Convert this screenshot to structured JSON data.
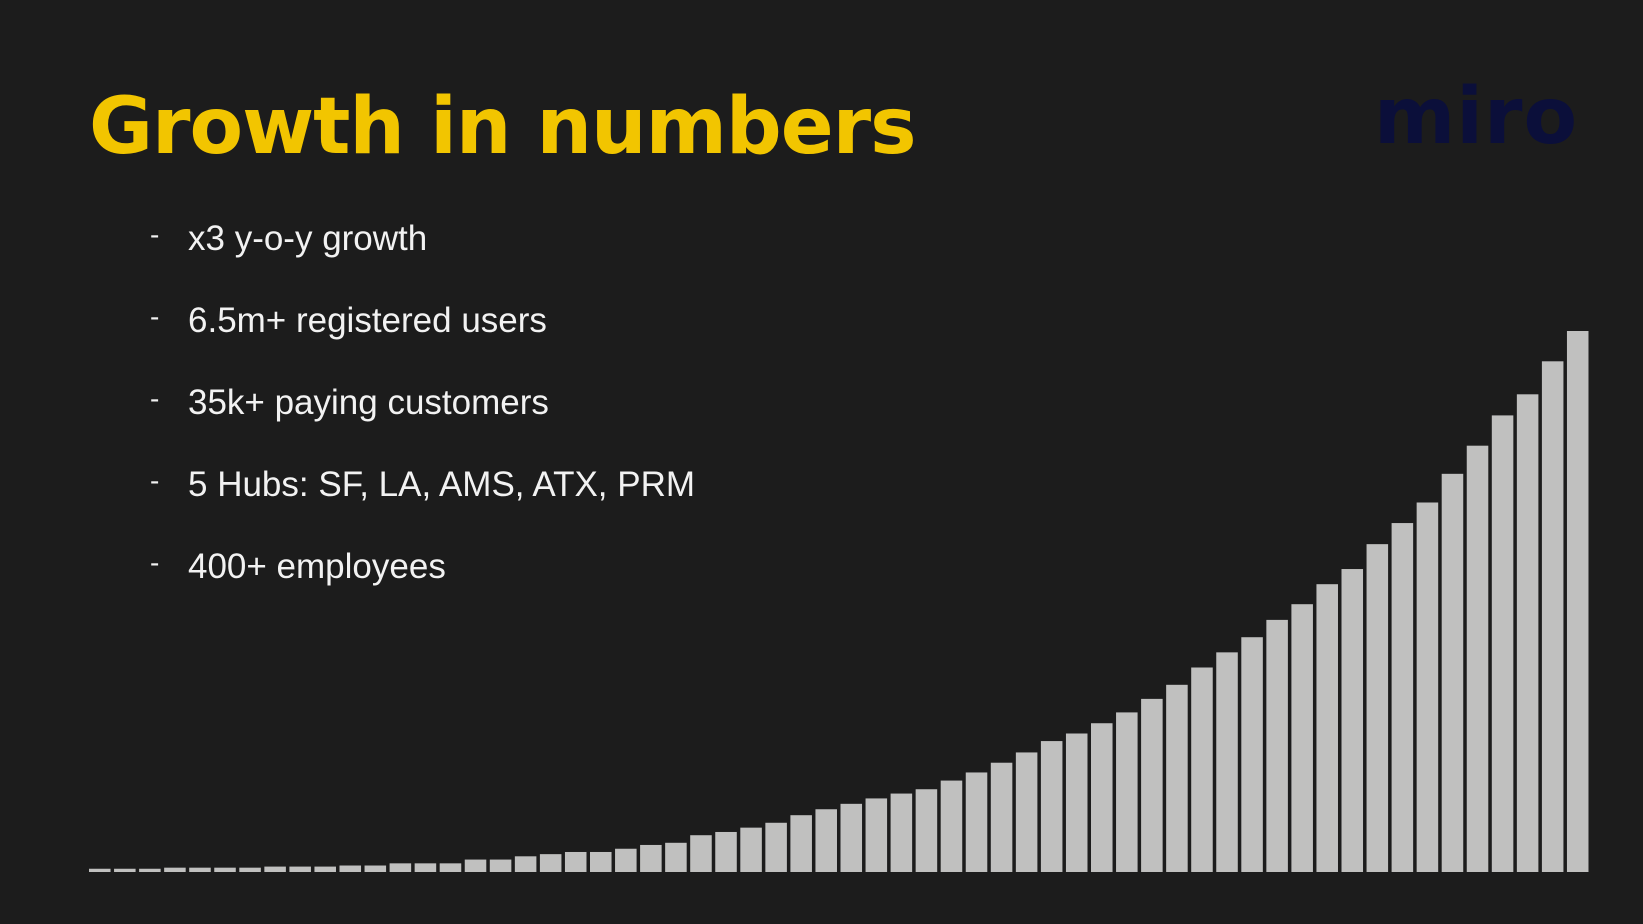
{
  "slide": {
    "title": "Growth in numbers",
    "logo_text": "miro",
    "bullets": [
      "x3 y-o-y growth",
      "6.5m+ registered users",
      "35k+ paying customers",
      "5 Hubs: SF, LA, AMS, ATX, PRM",
      "400+ employees"
    ],
    "bullet_marker": "-"
  },
  "colors": {
    "background": "#1c1c1c",
    "title": "#f2c500",
    "logo": "#0b0f3a",
    "text": "#f2f2f2",
    "bars": "#c0c0bf"
  },
  "chart_data": {
    "type": "bar",
    "title": "",
    "xlabel": "",
    "ylabel": "",
    "grid": false,
    "axes_visible": false,
    "ylim": [
      0,
      100
    ],
    "values": [
      0.6,
      0.6,
      0.6,
      0.8,
      0.8,
      0.8,
      0.8,
      1.0,
      1.0,
      1.0,
      1.2,
      1.2,
      1.6,
      1.6,
      1.6,
      2.3,
      2.3,
      2.9,
      3.3,
      3.7,
      3.7,
      4.3,
      5.0,
      5.4,
      6.8,
      7.4,
      8.2,
      9.1,
      10.5,
      11.6,
      12.6,
      13.6,
      14.5,
      15.3,
      16.9,
      18.4,
      20.2,
      22.1,
      24.2,
      25.6,
      27.5,
      29.5,
      32.0,
      34.6,
      37.8,
      40.6,
      43.4,
      46.6,
      49.5,
      53.2,
      56.0,
      60.6,
      64.5,
      68.3,
      73.6,
      78.8,
      84.4,
      88.3,
      94.4,
      100.0
    ]
  }
}
